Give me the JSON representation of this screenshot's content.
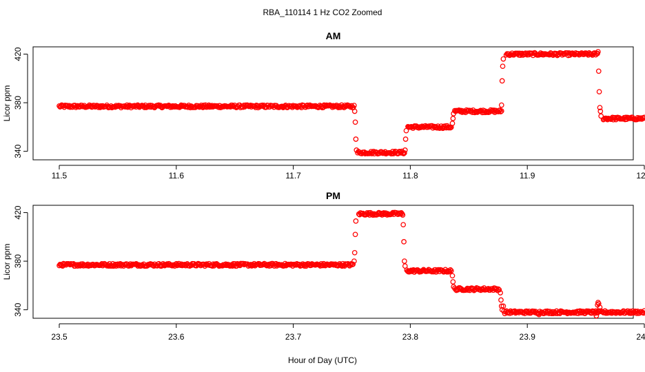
{
  "chart": {
    "title": "RBA_110114  1 Hz CO2 Zoomed",
    "xlabel": "Hour of Day (UTC)"
  },
  "chart_data": [
    {
      "type": "scatter",
      "title": "AM",
      "ylabel": "Licor ppm",
      "xlim": [
        11.5,
        12.0
      ],
      "ylim": [
        333,
        426
      ],
      "x_ticks": [
        11.5,
        11.6,
        11.7,
        11.8,
        11.9,
        12.0
      ],
      "x_tick_labels": [
        "11.5",
        "11.6",
        "11.7",
        "11.8",
        "11.9",
        "12.0"
      ],
      "y_ticks": [
        340,
        380,
        420
      ],
      "y_tick_labels": [
        "340",
        "380",
        "420"
      ],
      "marker_color": "#ff0000",
      "segments": [
        {
          "x_start": 11.5,
          "x_end": 11.752,
          "y": 377
        },
        {
          "x_start": 11.755,
          "x_end": 11.795,
          "y": 339
        },
        {
          "x_start": 11.798,
          "x_end": 11.835,
          "y": 360
        },
        {
          "x_start": 11.838,
          "x_end": 11.878,
          "y": 373
        },
        {
          "x_start": 11.882,
          "x_end": 11.96,
          "y": 420
        },
        {
          "x_start": 11.965,
          "x_end": 12.0,
          "y": 367
        }
      ],
      "transitions": [
        {
          "x": 11.7525,
          "y": 373
        },
        {
          "x": 11.753,
          "y": 364
        },
        {
          "x": 11.7535,
          "y": 350
        },
        {
          "x": 11.754,
          "y": 341
        },
        {
          "x": 11.7955,
          "y": 341
        },
        {
          "x": 11.796,
          "y": 350
        },
        {
          "x": 11.7965,
          "y": 357
        },
        {
          "x": 11.836,
          "y": 363
        },
        {
          "x": 11.8365,
          "y": 367
        },
        {
          "x": 11.837,
          "y": 371
        },
        {
          "x": 11.878,
          "y": 378
        },
        {
          "x": 11.8785,
          "y": 398
        },
        {
          "x": 11.879,
          "y": 410
        },
        {
          "x": 11.8795,
          "y": 416
        },
        {
          "x": 11.9605,
          "y": 422
        },
        {
          "x": 11.961,
          "y": 406
        },
        {
          "x": 11.9615,
          "y": 389
        },
        {
          "x": 11.962,
          "y": 376
        },
        {
          "x": 11.9625,
          "y": 373
        },
        {
          "x": 11.963,
          "y": 369
        }
      ]
    },
    {
      "type": "scatter",
      "title": "PM",
      "ylabel": "Licor ppm",
      "xlim": [
        23.5,
        24.0
      ],
      "ylim": [
        333,
        426
      ],
      "x_ticks": [
        23.5,
        23.6,
        23.7,
        23.8,
        23.9,
        24.0
      ],
      "x_tick_labels": [
        "23.5",
        "23.6",
        "23.7",
        "23.8",
        "23.9",
        "24.0"
      ],
      "y_ticks": [
        340,
        380,
        420
      ],
      "y_tick_labels": [
        "340",
        "380",
        "420"
      ],
      "marker_color": "#ff0000",
      "segments": [
        {
          "x_start": 23.5,
          "x_end": 23.751,
          "y": 377
        },
        {
          "x_start": 23.756,
          "x_end": 23.793,
          "y": 419
        },
        {
          "x_start": 23.797,
          "x_end": 23.835,
          "y": 372
        },
        {
          "x_start": 23.838,
          "x_end": 23.876,
          "y": 357
        },
        {
          "x_start": 23.88,
          "x_end": 24.0,
          "y": 338
        }
      ],
      "transitions": [
        {
          "x": 23.752,
          "y": 380
        },
        {
          "x": 23.7525,
          "y": 387
        },
        {
          "x": 23.753,
          "y": 402
        },
        {
          "x": 23.7535,
          "y": 413
        },
        {
          "x": 23.7935,
          "y": 418
        },
        {
          "x": 23.794,
          "y": 410
        },
        {
          "x": 23.7945,
          "y": 396
        },
        {
          "x": 23.795,
          "y": 380
        },
        {
          "x": 23.7955,
          "y": 376
        },
        {
          "x": 23.836,
          "y": 368
        },
        {
          "x": 23.8365,
          "y": 363
        },
        {
          "x": 23.837,
          "y": 359
        },
        {
          "x": 23.877,
          "y": 354
        },
        {
          "x": 23.8775,
          "y": 348
        },
        {
          "x": 23.878,
          "y": 343
        },
        {
          "x": 23.8785,
          "y": 340
        },
        {
          "x": 23.8795,
          "y": 343
        },
        {
          "x": 23.96,
          "y": 344
        },
        {
          "x": 23.9605,
          "y": 346
        },
        {
          "x": 23.961,
          "y": 345
        },
        {
          "x": 23.962,
          "y": 342
        },
        {
          "x": 23.959,
          "y": 335
        },
        {
          "x": 23.91,
          "y": 336
        }
      ]
    }
  ]
}
